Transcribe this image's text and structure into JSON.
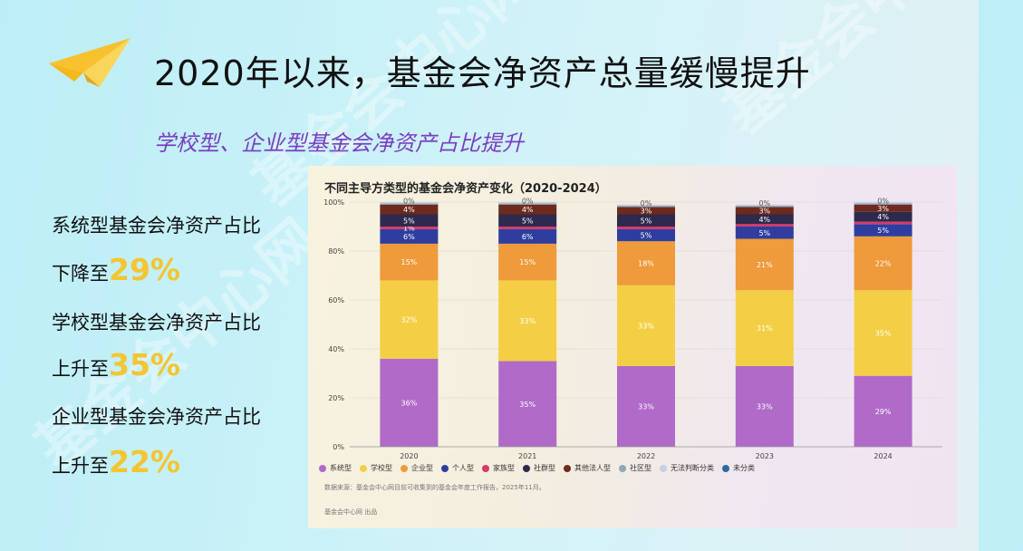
{
  "watermark": "基金会中心网",
  "header": {
    "title": "2020年以来，基金会净资产总量缓慢提升",
    "subtitle": "学校型、企业型基金会净资产占比提升"
  },
  "stats": [
    {
      "label": "系统型基金会净资产占比",
      "prefix": "下降至",
      "value": "29%"
    },
    {
      "label": "学校型基金会净资产占比",
      "prefix": "上升至",
      "value": "35%"
    },
    {
      "label": "企业型基金会净资产占比",
      "prefix": "上升至",
      "value": "22%"
    }
  ],
  "chart_card": {
    "source_note": "数据来源：基金会中心网目前可收集到的基金会年度工作报告，2025年11月。",
    "producer": "基金会中心网 出品"
  },
  "chart_data": {
    "type": "bar",
    "stacked": true,
    "title": "不同主导方类型的基金会净资产变化（2020-2024）",
    "categories": [
      "2020",
      "2021",
      "2022",
      "2023",
      "2024"
    ],
    "ylim": [
      0,
      100
    ],
    "y_ticks": [
      "0%",
      "20%",
      "40%",
      "60%",
      "80%",
      "100%"
    ],
    "legend_position": "bottom",
    "series": [
      {
        "name": "系统型",
        "color": "#b06ac8",
        "values": [
          36,
          35,
          33,
          33,
          29
        ],
        "labels": [
          "36%",
          "35%",
          "33%",
          "33%",
          "29%"
        ]
      },
      {
        "name": "学校型",
        "color": "#f4cf45",
        "values": [
          32,
          33,
          33,
          31,
          35
        ],
        "labels": [
          "32%",
          "33%",
          "33%",
          "31%",
          "35%"
        ]
      },
      {
        "name": "企业型",
        "color": "#ef9a3b",
        "values": [
          15,
          15,
          18,
          21,
          22
        ],
        "labels": [
          "15%",
          "15%",
          "18%",
          "21%",
          "22%"
        ]
      },
      {
        "name": "个人型",
        "color": "#2f3e9e",
        "values": [
          6,
          6,
          5,
          5,
          5
        ],
        "labels": [
          "6%",
          "6%",
          "5%",
          "5%",
          "5%"
        ]
      },
      {
        "name": "家族型",
        "color": "#d63a6a",
        "values": [
          1,
          1,
          1,
          1,
          1
        ],
        "labels": [
          "1%",
          "",
          "",
          "",
          ""
        ]
      },
      {
        "name": "社群型",
        "color": "#2e2a4d",
        "values": [
          5,
          5,
          5,
          4,
          4
        ],
        "labels": [
          "5%",
          "5%",
          "5%",
          "4%",
          "4%"
        ]
      },
      {
        "name": "其他法人型",
        "color": "#6e2a1c",
        "values": [
          4,
          4,
          3,
          3,
          3
        ],
        "labels": [
          "4%",
          "4%",
          "3%",
          "3%",
          "3%"
        ]
      },
      {
        "name": "社区型",
        "color": "#8fa8b8",
        "values": [
          0.5,
          0.5,
          0.5,
          0.5,
          0.5
        ],
        "labels": [
          "",
          "",
          "",
          "",
          ""
        ]
      },
      {
        "name": "无法判断分类",
        "color": "#c8cfe8",
        "values": [
          0.5,
          0.5,
          0.5,
          0.5,
          0.5
        ],
        "labels": [
          "0%",
          "0%",
          "0%",
          "0%",
          "0%"
        ]
      },
      {
        "name": "未分类",
        "color": "#2c6aa6",
        "values": [
          0,
          0,
          0,
          0,
          0
        ],
        "labels": [
          "",
          "",
          "",
          "",
          ""
        ]
      }
    ]
  }
}
